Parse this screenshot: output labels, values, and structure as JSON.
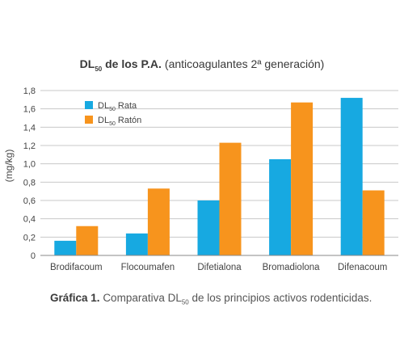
{
  "colors": {
    "rata": "#17a9e1",
    "raton": "#f7941d",
    "grid": "#c8c8c8",
    "axis": "#888888"
  },
  "caption": {
    "label": "Gráfica 1.",
    "text_before": "Comparativa DL",
    "subscript": "50",
    "text_after": "de los principios activos rodenticidas."
  },
  "chart_data": {
    "type": "bar",
    "title": {
      "main": "DL",
      "subscript": "50",
      "main_rest": " de los P.A.",
      "sub": "(anticoagulantes 2ª generación)"
    },
    "ylabel": "(mg/kg)",
    "xlabel": "",
    "ylim": [
      0,
      1.8
    ],
    "yticks": [
      "0",
      "0,2",
      "0,4",
      "0,6",
      "0,8",
      "1,0",
      "1,2",
      "1,4",
      "1,6",
      "1,8"
    ],
    "grid": true,
    "legend_position": "top-left",
    "categories": [
      "Brodifacoum",
      "Flocoumafen",
      "Difetialona",
      "Bromadiolona",
      "Difenacoum"
    ],
    "series": [
      {
        "name": "DL",
        "name_sub": "50",
        "name_rest": " Rata",
        "color": "#17a9e1",
        "values": [
          0.16,
          0.24,
          0.6,
          1.05,
          1.72
        ]
      },
      {
        "name": "DL",
        "name_sub": "50",
        "name_rest": " Ratón",
        "color": "#f7941d",
        "values": [
          0.32,
          0.73,
          1.23,
          1.67,
          0.71
        ]
      }
    ]
  }
}
